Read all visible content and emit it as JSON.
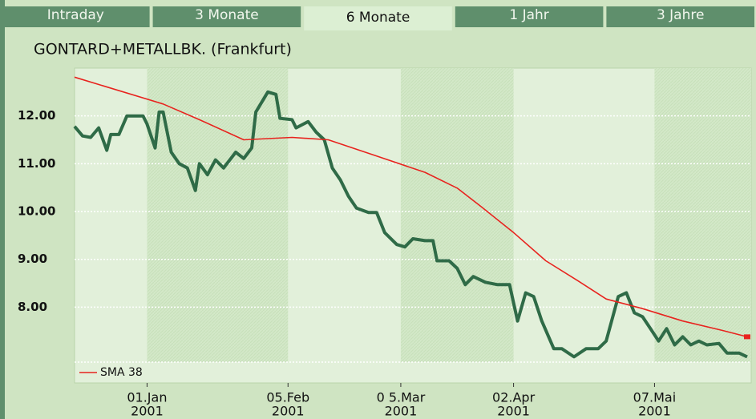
{
  "tabs": [
    "Intraday",
    "3 Monate",
    "6 Monate",
    "1 Jahr",
    "3 Jahre"
  ],
  "selected_tab": 2,
  "chart_data": {
    "type": "line",
    "title": "GONTARD+METALLBK. (Frankfurt)",
    "xlim": [
      "2000-12-14",
      "2001-05-31"
    ],
    "xticks": [
      {
        "value": "2001-01-01",
        "label": [
          "01.Jan",
          "2001"
        ]
      },
      {
        "value": "2001-02-05",
        "label": [
          "05.Feb",
          "2001"
        ]
      },
      {
        "value": "2001-03-05",
        "label": [
          "0 5.Mar",
          "2001"
        ]
      },
      {
        "value": "2001-04-02",
        "label": [
          "02.Apr",
          "2001"
        ]
      },
      {
        "value": "2001-05-07",
        "label": [
          "07.Mai",
          "2001"
        ]
      }
    ],
    "ylim": [
      6.85,
      13.0
    ],
    "yticks": [
      {
        "value": 8,
        "label": "8.00"
      },
      {
        "value": 9,
        "label": "9.00"
      },
      {
        "value": 10,
        "label": "10.00"
      },
      {
        "value": 11,
        "label": "11.00"
      },
      {
        "value": 12,
        "label": "12.00"
      }
    ],
    "grid": true,
    "legend": "lower left",
    "series": [
      {
        "color": "#2f6b47",
        "x": [
          "2000-12-14",
          "2000-12-16",
          "2000-12-18",
          "2000-12-20",
          "2000-12-22",
          "2000-12-23",
          "2000-12-25",
          "2000-12-27",
          "2000-12-31",
          "2001-01-01",
          "2001-01-03",
          "2001-01-04",
          "2001-01-05",
          "2001-01-07",
          "2001-01-09",
          "2001-01-11",
          "2001-01-13",
          "2001-01-14",
          "2001-01-16",
          "2001-01-18",
          "2001-01-20",
          "2001-01-23",
          "2001-01-25",
          "2001-01-27",
          "2001-01-28",
          "2001-01-31",
          "2001-02-02",
          "2001-02-03",
          "2001-02-06",
          "2001-02-07",
          "2001-02-10",
          "2001-02-12",
          "2001-02-14",
          "2001-02-16",
          "2001-02-18",
          "2001-02-20",
          "2001-02-22",
          "2001-02-25",
          "2001-02-27",
          "2001-03-01",
          "2001-03-04",
          "2001-03-06",
          "2001-03-08",
          "2001-03-11",
          "2001-03-13",
          "2001-03-14",
          "2001-03-17",
          "2001-03-19",
          "2001-03-21",
          "2001-03-23",
          "2001-03-26",
          "2001-03-29",
          "2001-04-01",
          "2001-04-03",
          "2001-04-05",
          "2001-04-07",
          "2001-04-09",
          "2001-04-12",
          "2001-04-14",
          "2001-04-17",
          "2001-04-20",
          "2001-04-23",
          "2001-04-25",
          "2001-04-28",
          "2001-04-30",
          "2001-05-02",
          "2001-05-04",
          "2001-05-06",
          "2001-05-08",
          "2001-05-10",
          "2001-05-12",
          "2001-05-14",
          "2001-05-16",
          "2001-05-18",
          "2001-05-20",
          "2001-05-23",
          "2001-05-25",
          "2001-05-28",
          "2001-05-30"
        ],
        "values": [
          11.78,
          11.58,
          11.55,
          11.75,
          11.28,
          11.61,
          11.61,
          12.0,
          12.0,
          11.83,
          11.33,
          12.08,
          12.08,
          11.24,
          11.0,
          10.91,
          10.44,
          11.0,
          10.77,
          11.08,
          10.91,
          11.24,
          11.11,
          11.33,
          12.08,
          12.5,
          12.45,
          11.95,
          11.92,
          11.75,
          11.88,
          11.66,
          11.5,
          10.91,
          10.66,
          10.32,
          10.07,
          9.98,
          9.98,
          9.56,
          9.31,
          9.26,
          9.43,
          9.39,
          9.39,
          8.97,
          8.97,
          8.81,
          8.47,
          8.64,
          8.52,
          8.47,
          8.47,
          7.71,
          8.3,
          8.22,
          7.71,
          7.13,
          7.13,
          6.96,
          7.13,
          7.13,
          7.29,
          8.22,
          8.3,
          7.88,
          7.8,
          7.55,
          7.29,
          7.55,
          7.21,
          7.38,
          7.21,
          7.29,
          7.21,
          7.24,
          7.04,
          7.04,
          6.96
        ]
      },
      {
        "name": "SMA 38",
        "color": "#e8231e",
        "x": [
          "2000-12-14",
          "2001-01-05",
          "2001-01-14",
          "2001-01-25",
          "2001-02-06",
          "2001-02-15",
          "2001-02-27",
          "2001-03-11",
          "2001-03-19",
          "2001-03-25",
          "2001-04-02",
          "2001-04-10",
          "2001-04-18",
          "2001-04-25",
          "2001-05-04",
          "2001-05-14",
          "2001-05-24",
          "2001-05-30"
        ],
        "values": [
          12.81,
          12.25,
          11.92,
          11.5,
          11.55,
          11.5,
          11.16,
          10.82,
          10.49,
          10.1,
          9.56,
          8.97,
          8.55,
          8.17,
          7.97,
          7.71,
          7.51,
          7.38
        ]
      }
    ]
  }
}
